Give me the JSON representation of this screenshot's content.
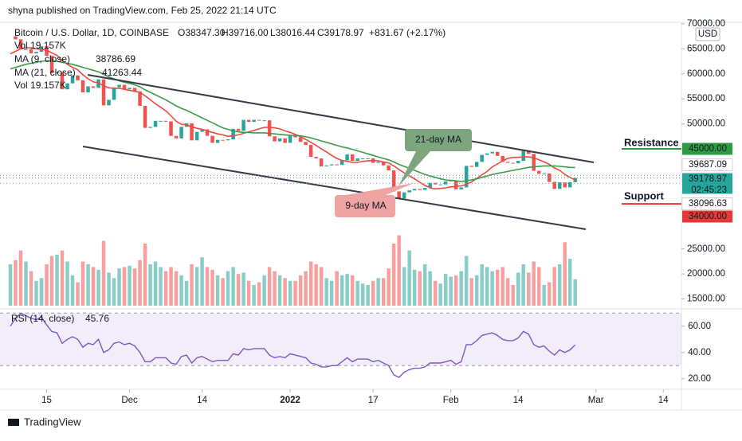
{
  "header": {
    "publisher": "shyna published on TradingView.com, Feb 25, 2022 21:14 UTC",
    "symbol": "Bitcoin / U.S. Dollar, 1D, COINBASE",
    "ohlc": [
      "O38347.30",
      "H39716.00",
      "L38016.44",
      "C39178.97"
    ],
    "change": "+831.67 (+2.17%)",
    "volume": "Vol 19.157K",
    "currency": "USD",
    "logo": "TradingView"
  },
  "chart_data": {
    "type": "candlestick",
    "close": [
      67500,
      66900,
      64900,
      64900,
      64100,
      64400,
      65500,
      63600,
      60100,
      60300,
      56900,
      58100,
      59700,
      58700,
      56300,
      57500,
      57200,
      58900,
      53700,
      54800,
      57300,
      57800,
      56900,
      57200,
      56500,
      53600,
      49200,
      49400,
      50600,
      50600,
      50500,
      47600,
      47100,
      49400,
      50100,
      46700,
      48400,
      48900,
      47600,
      46200,
      46800,
      46700,
      46900,
      49000,
      48600,
      50800,
      50400,
      50800,
      50700,
      50700,
      47500,
      46500,
      47100,
      46200,
      47700,
      47300,
      46400,
      45800,
      43400,
      43100,
      41500,
      41700,
      41900,
      41800,
      42700,
      43900,
      42600,
      43100,
      43100,
      43100,
      42200,
      42400,
      41700,
      40700,
      36500,
      35100,
      36300,
      36700,
      37000,
      36800,
      37200,
      38200,
      37900,
      37900,
      38500,
      38700,
      36900,
      37300,
      41600,
      41400,
      42400,
      43800,
      44100,
      44400,
      43600,
      42400,
      42200,
      42100,
      42600,
      44600,
      44000,
      40600,
      40000,
      40100,
      38400,
      37000,
      38300,
      37300,
      38347.3,
      39178.97
    ],
    "up_color": "#26a69a",
    "down_color": "#ef5350",
    "ylim": [
      13500,
      70300
    ],
    "yticks": [
      {
        "value": 70000,
        "label": "70000.00"
      },
      {
        "value": 65000,
        "label": "65000.00"
      },
      {
        "value": 60000,
        "label": "60000.00"
      },
      {
        "value": 55000,
        "label": "55000.00"
      },
      {
        "value": 50000,
        "label": "50000.00"
      },
      {
        "value": 25000,
        "label": "25000.00"
      },
      {
        "value": 20000,
        "label": "20000.00"
      },
      {
        "value": 15000,
        "label": "15000.00"
      }
    ],
    "xlim": [
      -2,
      129.5
    ],
    "xticks": [
      {
        "value": 7,
        "label": "15"
      },
      {
        "value": 23,
        "label": "Dec"
      },
      {
        "value": 37,
        "label": "14"
      },
      {
        "value": 54,
        "label": "2022"
      },
      {
        "value": 70,
        "label": "17"
      },
      {
        "value": 85,
        "label": "Feb"
      },
      {
        "value": 98,
        "label": "14"
      },
      {
        "value": 113,
        "label": "Mar"
      },
      {
        "value": 126,
        "label": "14"
      }
    ],
    "series": [
      {
        "name": "MA (9, close)",
        "color": "#f0473f",
        "values": [
          64000,
          64500,
          65000,
          65200,
          65200,
          65000,
          64900,
          64700,
          64200,
          63700,
          62700,
          61900,
          61300,
          60800,
          59800,
          59000,
          58400,
          58200,
          57600,
          57200,
          57100,
          57100,
          56900,
          56700,
          56500,
          56300,
          55600,
          54800,
          54000,
          53300,
          52600,
          51600,
          50500,
          49900,
          49800,
          49400,
          49100,
          48900,
          48600,
          48300,
          48000,
          47800,
          47500,
          47600,
          47800,
          48100,
          48400,
          48700,
          49000,
          49300,
          49300,
          49200,
          49000,
          48600,
          48300,
          47900,
          47400,
          46900,
          46300,
          45700,
          45000,
          44400,
          43700,
          43100,
          42700,
          42500,
          42300,
          42300,
          42500,
          42600,
          42700,
          42600,
          42400,
          42200,
          41600,
          40900,
          40200,
          39600,
          39000,
          38300,
          37700,
          37200,
          37000,
          37100,
          37200,
          37400,
          37500,
          37600,
          37900,
          38400,
          39100,
          39800,
          40500,
          41400,
          42000,
          42600,
          43100,
          43300,
          43300,
          43400,
          43400,
          43200,
          42800,
          42400,
          41900,
          41200,
          40700,
          39900,
          39300,
          38786.69
        ]
      },
      {
        "name": "MA (21, close)",
        "color": "#3d9b47",
        "values": [
          61000,
          61300,
          61600,
          61900,
          62100,
          62300,
          62500,
          62600,
          62600,
          62500,
          62300,
          62100,
          61900,
          61600,
          61300,
          61000,
          60700,
          60400,
          59900,
          59400,
          59000,
          58600,
          58300,
          58100,
          57800,
          57400,
          56800,
          56300,
          55800,
          55300,
          54800,
          54200,
          53600,
          53100,
          52700,
          52200,
          51700,
          51200,
          50700,
          50200,
          49700,
          49200,
          48900,
          48600,
          48400,
          48300,
          48300,
          48200,
          48200,
          48200,
          48100,
          48000,
          47900,
          47800,
          47700,
          47700,
          47600,
          47400,
          47200,
          46900,
          46600,
          46300,
          46000,
          45700,
          45400,
          45200,
          44900,
          44600,
          44300,
          44000,
          43700,
          43400,
          43100,
          42800,
          42400,
          41900,
          41500,
          41100,
          40700,
          40300,
          39900,
          39600,
          39300,
          39000,
          38800,
          38700,
          38600,
          38500,
          38600,
          38800,
          39000,
          39300,
          39600,
          39900,
          40100,
          40300,
          40500,
          40700,
          40900,
          41100,
          41300,
          41400,
          41500,
          41600,
          41600,
          41600,
          41500,
          41400,
          41300,
          41263.44
        ]
      }
    ],
    "volume": {
      "values": [
        30,
        33,
        40,
        32,
        25,
        18,
        20,
        30,
        36,
        37,
        40,
        32,
        22,
        17,
        32,
        30,
        28,
        26,
        47,
        24,
        20,
        27,
        28,
        29,
        27,
        33,
        45,
        30,
        32,
        28,
        25,
        28,
        25,
        22,
        18,
        30,
        28,
        35,
        28,
        26,
        22,
        20,
        25,
        28,
        23,
        24,
        18,
        15,
        17,
        22,
        28,
        25,
        22,
        20,
        18,
        18,
        22,
        25,
        32,
        30,
        28,
        20,
        18,
        25,
        22,
        23,
        22,
        18,
        16,
        15,
        18,
        20,
        20,
        27,
        45,
        51,
        28,
        40,
        26,
        25,
        30,
        25,
        18,
        16,
        23,
        21,
        22,
        25,
        36,
        20,
        22,
        30,
        28,
        25,
        26,
        28,
        20,
        15,
        24,
        30,
        24,
        32,
        28,
        15,
        17,
        28,
        30,
        46,
        34,
        19.157
      ],
      "ylim": [
        0,
        60
      ]
    },
    "price_lines": [
      {
        "value": 45000,
        "label": "45000.00",
        "color": "#2e9b44"
      },
      {
        "value": 39687.09,
        "label": "39687.09",
        "color": "#9598a1"
      },
      {
        "value": 39178.97,
        "label": "39178.97",
        "color": "#26a69a"
      },
      {
        "value": 38096.63,
        "label": "38096.63",
        "color": "#9598a1"
      },
      {
        "value": 34000,
        "label": "34000.00",
        "color": "#e53935"
      }
    ],
    "countdown": "02:45:23",
    "annotations": [
      {
        "text": "21-day MA",
        "color": "#7ea67e"
      },
      {
        "text": "9-day MA",
        "color": "#f0a3a3"
      },
      {
        "text": "Resistance",
        "color": "#e53935"
      },
      {
        "text": "Support",
        "color": "#2e7d32"
      }
    ],
    "rsi": {
      "name": "RSI (14, close)",
      "color": "#7e57c2",
      "values": [
        60,
        66,
        70,
        68,
        66,
        65,
        67,
        61,
        56,
        55,
        47,
        50,
        52,
        50,
        44,
        47,
        46,
        50,
        40,
        42,
        47,
        48,
        46,
        47,
        45,
        40,
        33,
        33,
        36,
        36,
        36,
        32,
        31,
        37,
        38,
        32,
        36,
        37,
        35,
        33,
        34,
        34,
        34,
        39,
        38,
        43,
        42,
        43,
        43,
        43,
        38,
        36,
        37,
        36,
        39,
        38,
        37,
        36,
        32,
        31,
        29,
        29,
        30,
        30,
        33,
        36,
        33,
        35,
        35,
        35,
        33,
        34,
        32,
        30,
        23,
        21,
        25,
        27,
        28,
        28,
        29,
        32,
        32,
        32,
        33,
        34,
        31,
        33,
        46,
        46,
        49,
        53,
        54,
        55,
        53,
        50,
        49,
        49,
        51,
        56,
        54,
        46,
        44,
        45,
        41,
        38,
        42,
        40,
        42,
        45.76
      ],
      "ylim": [
        12,
        72
      ],
      "yticks": [
        {
          "value": 60,
          "label": "60.00"
        },
        {
          "value": 40,
          "label": "40.00"
        },
        {
          "value": 20,
          "label": "20.00"
        }
      ],
      "band": [
        30,
        70
      ]
    }
  }
}
